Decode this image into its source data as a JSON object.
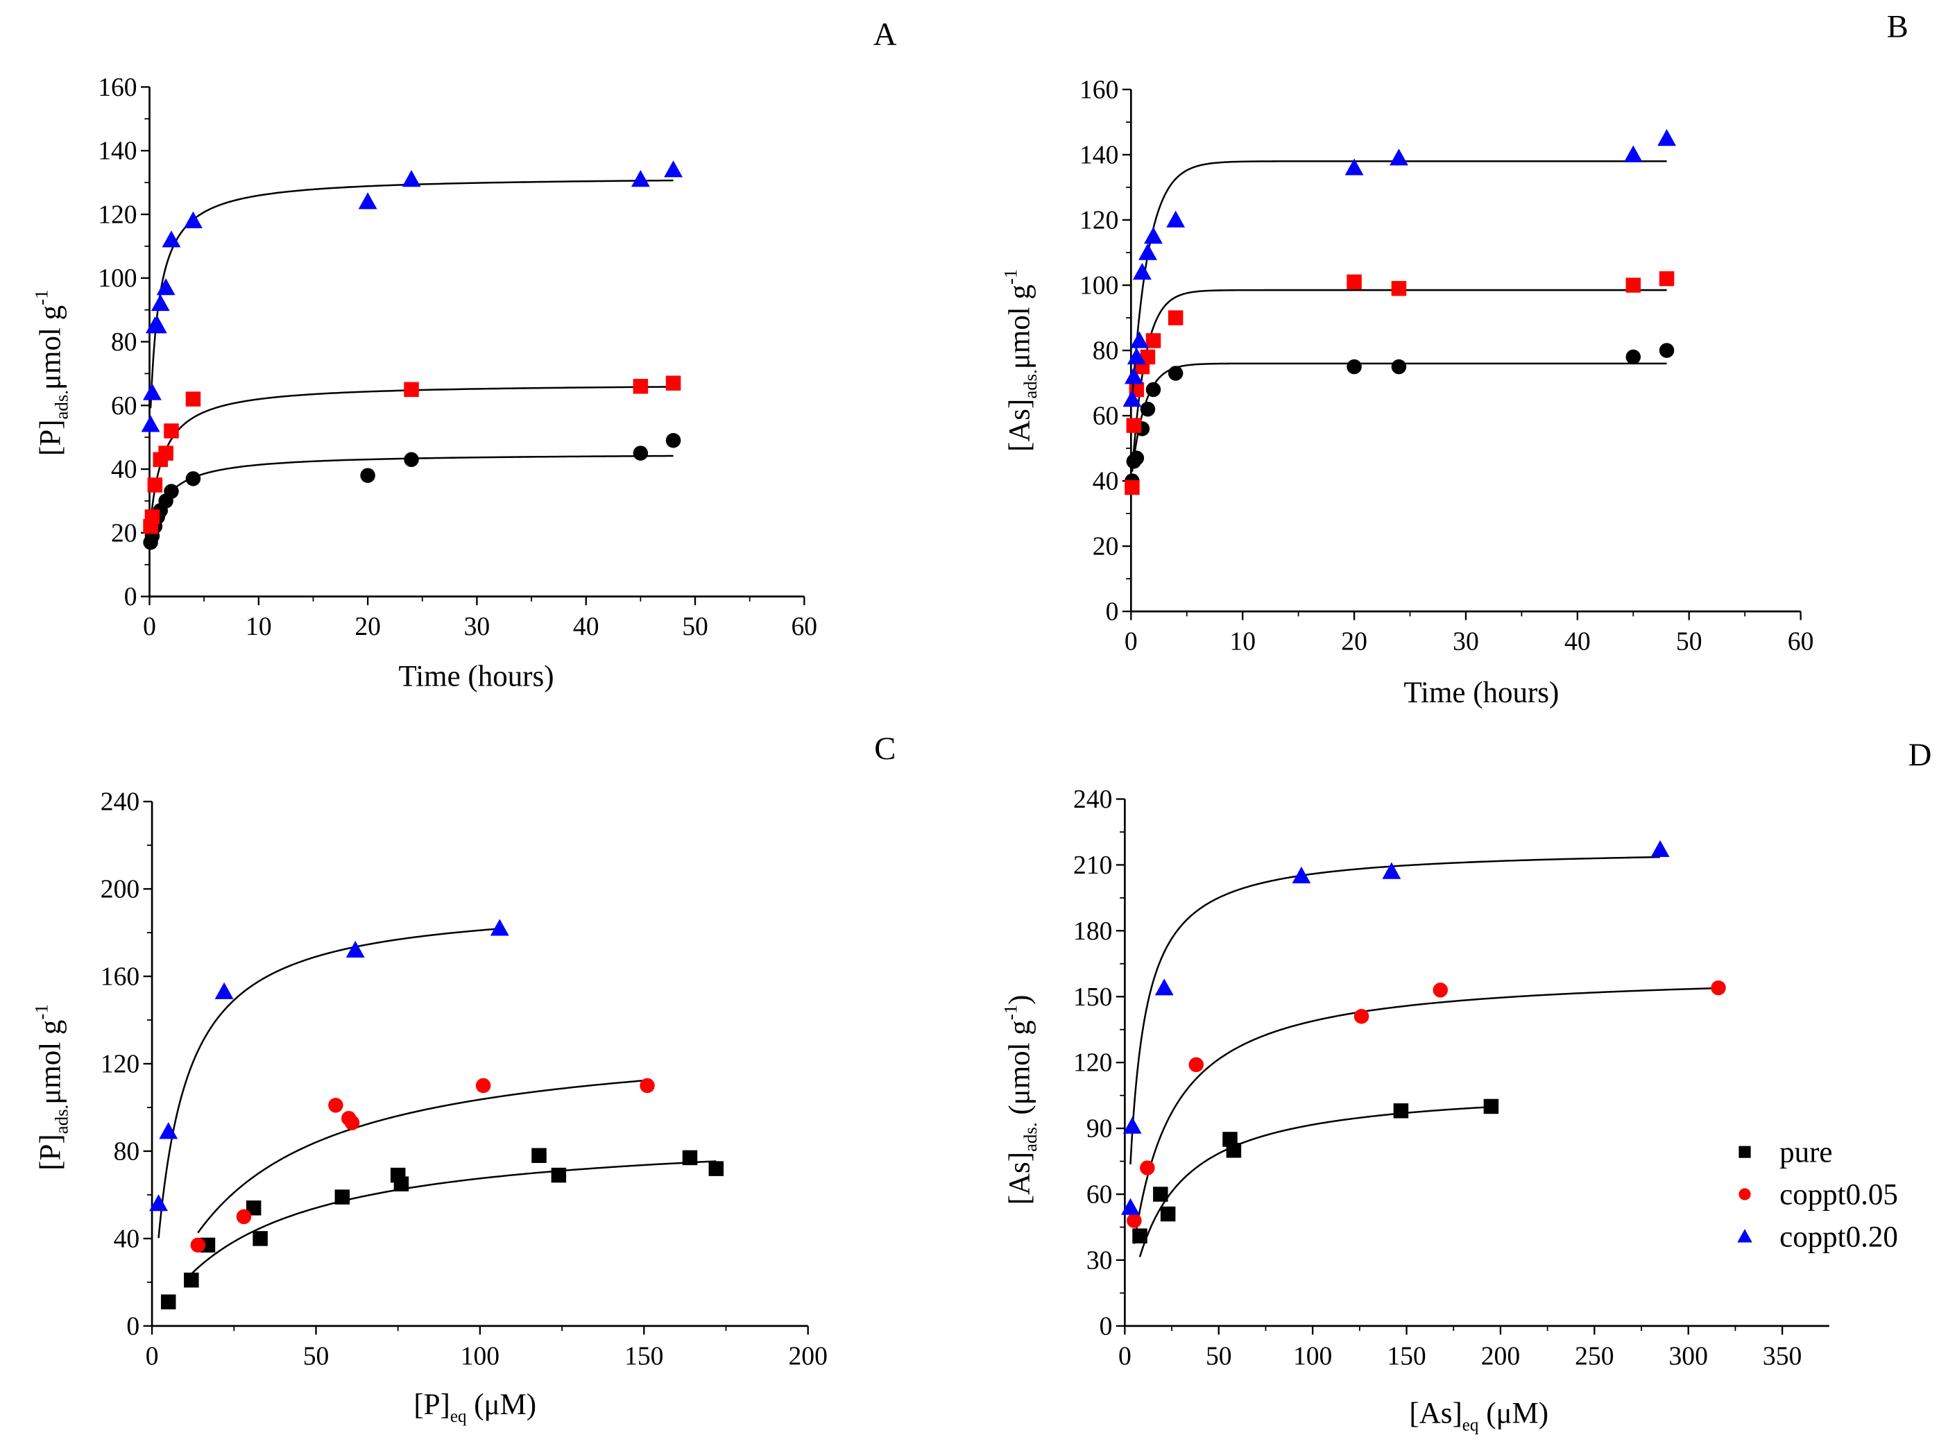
{
  "colors": {
    "pure": "#000000",
    "coppt005": "#ff0000",
    "coppt020": "#0000ff"
  },
  "legend": [
    "pure",
    "coppt0.05",
    "coppt0.20"
  ],
  "chart_data": [
    {
      "panel": "A",
      "type": "scatter",
      "xlabel": {
        "main": "Time (hours)"
      },
      "ylabel": {
        "main": "[P]",
        "sub": "ads.",
        "unit": "μmol g",
        "sup": "-1"
      },
      "xlim": [
        0,
        60
      ],
      "xticks": [
        0,
        10,
        20,
        30,
        40,
        50,
        60
      ],
      "ylim": [
        0,
        160
      ],
      "yticks": [
        0,
        20,
        40,
        60,
        80,
        100,
        120,
        140,
        160
      ],
      "fit_model": "q0+(qe-q0)*x/(x+h)",
      "series": [
        {
          "name": "pure",
          "marker": "circle",
          "x": [
            0.1,
            0.25,
            0.5,
            0.75,
            1,
            1.5,
            2,
            4,
            20,
            24,
            45,
            48
          ],
          "y": [
            17,
            19,
            22,
            25,
            27,
            30,
            33,
            37,
            38,
            43,
            45,
            49
          ],
          "fit": {
            "q0": 17,
            "qe": 45,
            "h": 1.5,
            "range": [
              0.1,
              48
            ]
          }
        },
        {
          "name": "coppt0.05",
          "marker": "square",
          "x": [
            0.1,
            0.25,
            0.5,
            1,
            1.5,
            2,
            4,
            24,
            45,
            48
          ],
          "y": [
            22,
            25,
            35,
            43,
            45,
            52,
            62,
            65,
            66,
            67
          ],
          "fit": {
            "q0": 20,
            "qe": 67,
            "h": 1.2,
            "range": [
              0.1,
              48
            ]
          }
        },
        {
          "name": "coppt0.20",
          "marker": "triangle",
          "x": [
            0.1,
            0.25,
            0.5,
            0.75,
            1,
            1.5,
            2,
            4,
            20,
            24,
            45,
            48
          ],
          "y": [
            54,
            64,
            85,
            85,
            92,
            97,
            112,
            118,
            124,
            131,
            131,
            134
          ],
          "fit": {
            "q0": 50,
            "qe": 132,
            "h": 0.8,
            "range": [
              0.1,
              48
            ]
          }
        }
      ]
    },
    {
      "panel": "B",
      "type": "scatter",
      "xlabel": {
        "main": "Time (hours)"
      },
      "ylabel": {
        "main": "[As]",
        "sub": "ads.",
        "unit": "μmol g",
        "sup": "-1"
      },
      "xlim": [
        0,
        60
      ],
      "xticks": [
        0,
        10,
        20,
        30,
        40,
        50,
        60
      ],
      "ylim": [
        0,
        160
      ],
      "yticks": [
        0,
        20,
        40,
        60,
        80,
        100,
        120,
        140,
        160
      ],
      "fit_model": "qe-(qe-q0)*exp(-x/tau)",
      "series": [
        {
          "name": "pure",
          "marker": "circle",
          "x": [
            0.1,
            0.25,
            0.5,
            1,
            1.5,
            2,
            4,
            20,
            24,
            45,
            48
          ],
          "y": [
            40,
            46,
            47,
            56,
            62,
            68,
            73,
            75,
            75,
            78,
            80
          ],
          "fit": {
            "q0": 40,
            "qe": 76,
            "tau": 1.2,
            "range": [
              0.1,
              48
            ]
          }
        },
        {
          "name": "coppt0.05",
          "marker": "square",
          "x": [
            0.1,
            0.25,
            0.5,
            1,
            1.5,
            2,
            4,
            20,
            24,
            45,
            48
          ],
          "y": [
            38,
            57,
            68,
            75,
            78,
            83,
            90,
            101,
            99,
            100,
            102
          ],
          "fit": {
            "q0": 38,
            "qe": 98.5,
            "tau": 1.2,
            "range": [
              0.1,
              48
            ]
          }
        },
        {
          "name": "coppt0.20",
          "marker": "triangle",
          "x": [
            0.1,
            0.25,
            0.5,
            0.75,
            1,
            1.5,
            2,
            4,
            20,
            24,
            45,
            48
          ],
          "y": [
            65,
            72,
            78,
            83,
            104,
            110,
            115,
            120,
            136,
            139,
            140,
            145
          ],
          "fit": {
            "q0": 60,
            "qe": 138,
            "tau": 1.5,
            "range": [
              0.1,
              48
            ]
          }
        }
      ]
    },
    {
      "panel": "C",
      "type": "scatter",
      "xlabel": {
        "main": "[P]",
        "sub": "eq",
        "tail": " (μM)"
      },
      "ylabel": {
        "main": "[P]",
        "sub": "ads.",
        "unit": "μmol g",
        "sup": "-1"
      },
      "xlim": [
        0,
        200
      ],
      "xticks": [
        0,
        50,
        100,
        150,
        200
      ],
      "ylim": [
        0,
        240
      ],
      "yticks": [
        0,
        40,
        80,
        120,
        160,
        200,
        240
      ],
      "fit_model": "qm*K*x/(1+K*x)",
      "series": [
        {
          "name": "pure",
          "marker": "square",
          "x": [
            5,
            12,
            17,
            31,
            33,
            58,
            75,
            76,
            118,
            124,
            164,
            172
          ],
          "y": [
            11,
            21,
            37,
            54,
            40,
            59,
            69,
            65,
            78,
            69,
            77,
            72
          ],
          "fit": {
            "qm": 90,
            "K": 0.03,
            "range": [
              12,
              172
            ]
          }
        },
        {
          "name": "coppt0.05",
          "marker": "circle",
          "x": [
            14,
            28,
            56,
            60,
            61,
            101,
            151
          ],
          "y": [
            37,
            50,
            101,
            95,
            93,
            110,
            110
          ],
          "fit": {
            "qm": 135,
            "K": 0.033,
            "range": [
              14,
              151
            ]
          }
        },
        {
          "name": "coppt0.20",
          "marker": "triangle",
          "x": [
            2,
            5,
            22,
            62,
            106
          ],
          "y": [
            56,
            89,
            153,
            172,
            182
          ],
          "fit": {
            "qm": 195,
            "K": 0.13,
            "range": [
              2,
              106
            ]
          }
        }
      ]
    },
    {
      "panel": "D",
      "type": "scatter",
      "xlabel": {
        "main": "[As]",
        "sub": "eq",
        "tail": " (μM)"
      },
      "ylabel": {
        "main": "[As]",
        "sub": "ads.",
        "unit": " (μmol g",
        "sup": "-1",
        "tail": ")"
      },
      "xlim": [
        0,
        375
      ],
      "xticks": [
        0,
        50,
        100,
        150,
        200,
        250,
        300,
        350
      ],
      "ylim": [
        0,
        240
      ],
      "yticks": [
        0,
        30,
        60,
        90,
        120,
        150,
        180,
        210,
        240
      ],
      "legend_position": "right",
      "fit_model": "qm*K*x/(1+K*x)",
      "series": [
        {
          "name": "pure",
          "marker": "square",
          "x": [
            8,
            19,
            23,
            56,
            58,
            147,
            195
          ],
          "y": [
            41,
            60,
            51,
            85,
            80,
            98,
            100
          ],
          "fit": {
            "qm": 110,
            "K": 0.05,
            "range": [
              8,
              195
            ]
          }
        },
        {
          "name": "coppt0.05",
          "marker": "circle",
          "x": [
            5,
            12,
            38,
            126,
            168,
            316
          ],
          "y": [
            48,
            72,
            119,
            141,
            153,
            154
          ],
          "fit": {
            "qm": 162,
            "K": 0.06,
            "range": [
              5,
              316
            ]
          }
        },
        {
          "name": "coppt0.20",
          "marker": "triangle",
          "x": [
            3,
            4,
            21,
            94,
            142,
            285
          ],
          "y": [
            54,
            91,
            154,
            205,
            207,
            217
          ],
          "fit": {
            "qm": 218,
            "K": 0.17,
            "range": [
              3,
              285
            ]
          }
        }
      ]
    }
  ]
}
